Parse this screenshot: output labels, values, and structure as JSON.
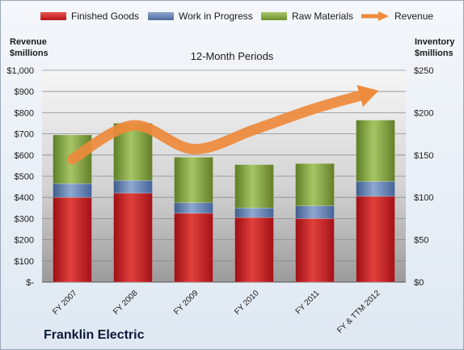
{
  "legend": {
    "finished_goods": "Finished Goods",
    "wip": "Work in Progress",
    "raw_materials": "Raw Materials",
    "revenue": "Revenue"
  },
  "left_axis_title_1": "Revenue",
  "left_axis_title_2": "$millions",
  "right_axis_title_1": "Inventory",
  "right_axis_title_2": "$millions",
  "company": "Franklin Electric",
  "colors": {
    "finished_goods": "#c0161c",
    "wip": "#5877a8",
    "raw_materials": "#7a9a35",
    "revenue": "#ee8a3c"
  },
  "chart_data": {
    "type": "bar",
    "title": "12-Month Periods",
    "stacked": true,
    "categories": [
      "FY 2007",
      "FY 2008",
      "FY 2009",
      "FY 2010",
      "FY 2011",
      "FY & TTM 2012"
    ],
    "series": [
      {
        "name": "Finished Goods",
        "axis": "left",
        "values": [
          400,
          420,
          325,
          305,
          300,
          405
        ]
      },
      {
        "name": "Work in Progress",
        "axis": "left",
        "values": [
          65,
          60,
          50,
          45,
          60,
          70
        ]
      },
      {
        "name": "Raw Materials",
        "axis": "left",
        "values": [
          230,
          270,
          215,
          205,
          200,
          290
        ]
      },
      {
        "name": "Revenue",
        "type": "line",
        "axis": "right",
        "values": [
          145,
          185,
          157,
          180,
          205,
          225
        ]
      }
    ],
    "left_axis": {
      "ylim": [
        0,
        1000
      ],
      "ticks": [
        "$-",
        "$100",
        "$200",
        "$300",
        "$400",
        "$500",
        "$600",
        "$700",
        "$800",
        "$900",
        "$1,000"
      ]
    },
    "right_axis": {
      "ylim": [
        0,
        250
      ],
      "ticks": [
        "$0",
        "$50",
        "$100",
        "$150",
        "$200",
        "$250"
      ]
    },
    "grid": true,
    "legend_position": "top"
  }
}
